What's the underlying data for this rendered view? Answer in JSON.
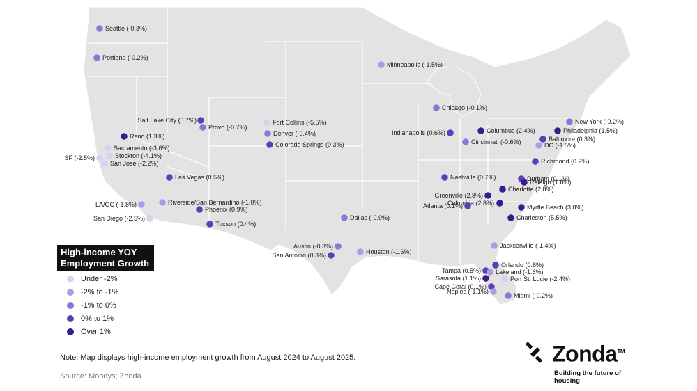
{
  "legend": {
    "title_line1": "High-income YOY",
    "title_line2": "Employment Growth",
    "items": [
      {
        "label": "Under -2%",
        "color": "#d6d2ef"
      },
      {
        "label": "-2% to -1%",
        "color": "#a99ee3"
      },
      {
        "label": "-1% to 0%",
        "color": "#8a77d8"
      },
      {
        "label": "0% to 1%",
        "color": "#5b3fb8"
      },
      {
        "label": "Over 1%",
        "color": "#3b1a8a"
      }
    ]
  },
  "note": "Note: Map displays high-income employment growth from August 2024 to August 2025.",
  "source": "Source: Moodys; Zonda",
  "logo": {
    "word": "Zonda",
    "tm": "TM",
    "tagline": "Building the future of housing"
  },
  "cities": [
    {
      "label": "Seattle (-0.3%)",
      "bin": 2
    },
    {
      "label": "Portland (-0.2%)",
      "bin": 2
    },
    {
      "label": "Minneapolis (-1.5%)",
      "bin": 1
    },
    {
      "label": "Salt Lake City (0.7%)",
      "bin": 3
    },
    {
      "label": "Provo (-0.7%)",
      "bin": 2
    },
    {
      "label": "Fort Collins (-5.5%)",
      "bin": 0
    },
    {
      "label": "Denver (-0.4%)",
      "bin": 2
    },
    {
      "label": "Colorado Springs (0.3%)",
      "bin": 3
    },
    {
      "label": "Reno (1.3%)",
      "bin": 4
    },
    {
      "label": "Sacramento (-3.6%)",
      "bin": 0
    },
    {
      "label": "Stockton (-4.1%)",
      "bin": 0
    },
    {
      "label": "SF (-2.5%)",
      "bin": 0
    },
    {
      "label": "San Jose (-2.2%)",
      "bin": 0
    },
    {
      "label": "Las Vegas (0.5%)",
      "bin": 3
    },
    {
      "label": "Riverside/San Bernardino (-1.0%)",
      "bin": 1
    },
    {
      "label": "LA/OC (-1.8%)",
      "bin": 1
    },
    {
      "label": "Phoenix (0.9%)",
      "bin": 3
    },
    {
      "label": "San Diego (-2.5%)",
      "bin": 0
    },
    {
      "label": "Tucson (0.4%)",
      "bin": 3
    },
    {
      "label": "Chicago (-0.1%)",
      "bin": 2
    },
    {
      "label": "Indianapolis (0.6%)",
      "bin": 3
    },
    {
      "label": "Columbus (2.4%)",
      "bin": 4
    },
    {
      "label": "Cincinnati (-0.6%)",
      "bin": 2
    },
    {
      "label": "New York (-0.2%)",
      "bin": 2
    },
    {
      "label": "Philadelphia (1.5%)",
      "bin": 4
    },
    {
      "label": "Baltimore (0.3%)",
      "bin": 3
    },
    {
      "label": "DC (-1.5%)",
      "bin": 1
    },
    {
      "label": "Richmond (0.2%)",
      "bin": 3
    },
    {
      "label": "Nashville (0.7%)",
      "bin": 3
    },
    {
      "label": "Durham (0.1%)",
      "bin": 3
    },
    {
      "label": "Raleigh (1.8%)",
      "bin": 4
    },
    {
      "label": "Charlotte (2.8%)",
      "bin": 4
    },
    {
      "label": "Greenville (2.8%)",
      "bin": 4
    },
    {
      "label": "Columbia (2.8%)",
      "bin": 4
    },
    {
      "label": "Atlanta (0.1%)",
      "bin": 3
    },
    {
      "label": "Myrtle Beach (3.8%)",
      "bin": 4
    },
    {
      "label": "Charleston (5.5%)",
      "bin": 4
    },
    {
      "label": "Dallas (-0.9%)",
      "bin": 2
    },
    {
      "label": "Austin (-0.3%)",
      "bin": 2
    },
    {
      "label": "San Antonio (0.3%)",
      "bin": 3
    },
    {
      "label": "Houston (-1.6%)",
      "bin": 1
    },
    {
      "label": "Jacksonville (-1.4%)",
      "bin": 1
    },
    {
      "label": "Orlando (0.8%)",
      "bin": 3
    },
    {
      "label": "Tampa (0.5%)",
      "bin": 3
    },
    {
      "label": "Lakeland (-1.6%)",
      "bin": 1
    },
    {
      "label": "Sarasota (1.1%)",
      "bin": 4
    },
    {
      "label": "Port St. Lucie (-2.4%)",
      "bin": 0
    },
    {
      "label": "Cape Coral (0.1%)",
      "bin": 3
    },
    {
      "label": "Naples (-1.1%)",
      "bin": 1
    },
    {
      "label": "Miami (-0.2%)",
      "bin": 2
    }
  ]
}
